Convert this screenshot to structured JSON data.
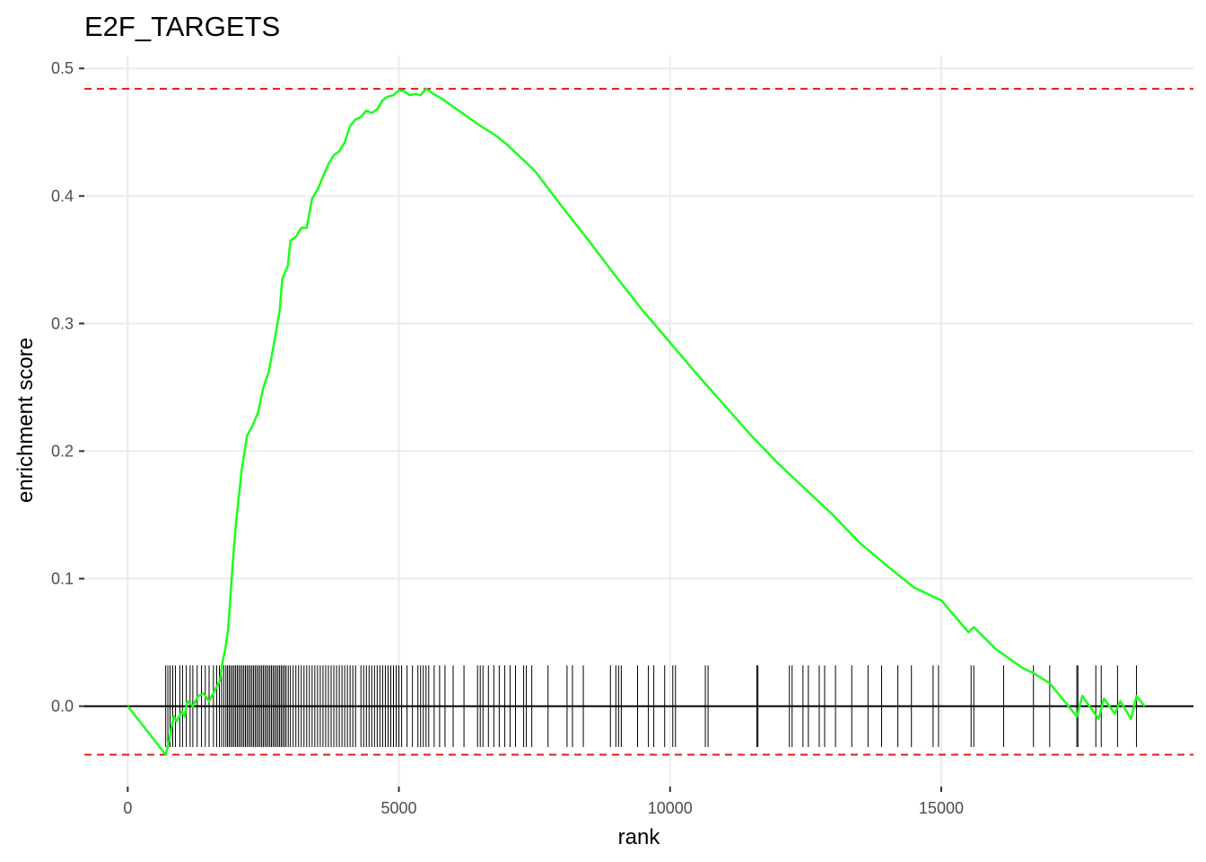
{
  "chart_data": {
    "type": "line",
    "title": "E2F_TARGETS",
    "xlabel": "rank",
    "ylabel": "enrichment score",
    "xlim": [
      -800,
      19650
    ],
    "ylim": [
      -0.063,
      0.51
    ],
    "x_ticks": [
      0,
      5000,
      10000,
      15000
    ],
    "x_tick_labels": [
      "0",
      "5000",
      "10000",
      "15000"
    ],
    "y_ticks": [
      0.0,
      0.1,
      0.2,
      0.3,
      0.4,
      0.5
    ],
    "y_tick_labels": [
      "0.0",
      "0.1",
      "0.2",
      "0.3",
      "0.4",
      "0.5"
    ],
    "grid": true,
    "colors": {
      "curve": "#1aff1a",
      "threshold": "#e31a1c",
      "baseline": "#000000",
      "grid": "#ebebeb",
      "ticks": "#000000"
    },
    "thresholds": {
      "upper": 0.484,
      "lower": -0.038
    },
    "series": [
      {
        "values": [
          [
            0,
            0.0
          ],
          [
            700,
            -0.038
          ],
          [
            760,
            -0.028
          ],
          [
            800,
            -0.018
          ],
          [
            850,
            -0.008
          ],
          [
            900,
            -0.012
          ],
          [
            1000,
            -0.004
          ],
          [
            1050,
            -0.008
          ],
          [
            1100,
            0.004
          ],
          [
            1200,
            0.0
          ],
          [
            1300,
            0.008
          ],
          [
            1400,
            0.01
          ],
          [
            1500,
            0.004
          ],
          [
            1600,
            0.012
          ],
          [
            1700,
            0.02
          ],
          [
            1750,
            0.035
          ],
          [
            1800,
            0.045
          ],
          [
            1850,
            0.06
          ],
          [
            1900,
            0.09
          ],
          [
            1950,
            0.12
          ],
          [
            2000,
            0.145
          ],
          [
            2100,
            0.185
          ],
          [
            2200,
            0.212
          ],
          [
            2300,
            0.22
          ],
          [
            2400,
            0.23
          ],
          [
            2500,
            0.25
          ],
          [
            2600,
            0.262
          ],
          [
            2700,
            0.285
          ],
          [
            2800,
            0.31
          ],
          [
            2850,
            0.335
          ],
          [
            2950,
            0.345
          ],
          [
            3000,
            0.365
          ],
          [
            3100,
            0.368
          ],
          [
            3200,
            0.375
          ],
          [
            3300,
            0.375
          ],
          [
            3400,
            0.398
          ],
          [
            3500,
            0.405
          ],
          [
            3600,
            0.415
          ],
          [
            3700,
            0.425
          ],
          [
            3800,
            0.432
          ],
          [
            3900,
            0.435
          ],
          [
            4000,
            0.442
          ],
          [
            4100,
            0.455
          ],
          [
            4200,
            0.46
          ],
          [
            4300,
            0.462
          ],
          [
            4400,
            0.467
          ],
          [
            4500,
            0.465
          ],
          [
            4600,
            0.468
          ],
          [
            4700,
            0.475
          ],
          [
            4800,
            0.478
          ],
          [
            4900,
            0.479
          ],
          [
            5000,
            0.483
          ],
          [
            5100,
            0.482
          ],
          [
            5200,
            0.479
          ],
          [
            5300,
            0.48
          ],
          [
            5400,
            0.479
          ],
          [
            5500,
            0.484
          ],
          [
            5600,
            0.481
          ],
          [
            5800,
            0.476
          ],
          [
            6000,
            0.47
          ],
          [
            6200,
            0.464
          ],
          [
            6500,
            0.455
          ],
          [
            6800,
            0.447
          ],
          [
            7000,
            0.44
          ],
          [
            7500,
            0.42
          ],
          [
            8000,
            0.392
          ],
          [
            8500,
            0.365
          ],
          [
            9000,
            0.337
          ],
          [
            9500,
            0.31
          ],
          [
            10000,
            0.285
          ],
          [
            10500,
            0.26
          ],
          [
            11000,
            0.236
          ],
          [
            11500,
            0.212
          ],
          [
            12000,
            0.19
          ],
          [
            12500,
            0.17
          ],
          [
            13000,
            0.15
          ],
          [
            13500,
            0.128
          ],
          [
            14000,
            0.11
          ],
          [
            14500,
            0.093
          ],
          [
            15000,
            0.083
          ],
          [
            15500,
            0.058
          ],
          [
            15600,
            0.062
          ],
          [
            16000,
            0.045
          ],
          [
            16500,
            0.03
          ],
          [
            16700,
            0.026
          ],
          [
            17000,
            0.018
          ],
          [
            17500,
            -0.008
          ],
          [
            17600,
            0.008
          ],
          [
            17900,
            -0.01
          ],
          [
            18000,
            0.006
          ],
          [
            18200,
            -0.006
          ],
          [
            18300,
            0.004
          ],
          [
            18500,
            -0.01
          ],
          [
            18600,
            0.008
          ],
          [
            18750,
            0.0
          ]
        ]
      }
    ],
    "hits": [
      700,
      740,
      780,
      830,
      880,
      960,
      1010,
      1080,
      1150,
      1200,
      1280,
      1360,
      1430,
      1500,
      1580,
      1640,
      1690,
      1730,
      1770,
      1810,
      1840,
      1870,
      1900,
      1930,
      1960,
      1990,
      2020,
      2050,
      2080,
      2110,
      2140,
      2170,
      2200,
      2230,
      2260,
      2290,
      2320,
      2350,
      2380,
      2410,
      2440,
      2470,
      2500,
      2530,
      2560,
      2590,
      2620,
      2650,
      2680,
      2710,
      2740,
      2770,
      2800,
      2830,
      2860,
      2890,
      2920,
      2960,
      3000,
      3050,
      3100,
      3150,
      3200,
      3250,
      3300,
      3350,
      3400,
      3450,
      3500,
      3550,
      3600,
      3650,
      3700,
      3750,
      3800,
      3850,
      3900,
      3950,
      4000,
      4050,
      4100,
      4150,
      4200,
      4300,
      4350,
      4400,
      4450,
      4500,
      4550,
      4600,
      4650,
      4700,
      4750,
      4800,
      4850,
      4900,
      4950,
      5000,
      5050,
      5150,
      5250,
      5350,
      5400,
      5450,
      5500,
      5550,
      5650,
      5750,
      5850,
      6000,
      6200,
      6450,
      6500,
      6550,
      6650,
      6750,
      6850,
      6950,
      7050,
      7150,
      7300,
      7350,
      7450,
      7750,
      8100,
      8200,
      8400,
      8900,
      9000,
      9050,
      9100,
      9400,
      9600,
      9700,
      9900,
      10050,
      10100,
      10650,
      10700,
      11600,
      11620,
      12200,
      12250,
      12450,
      12550,
      12750,
      12850,
      13050,
      13350,
      13650,
      13900,
      14200,
      14450,
      14850,
      14950,
      15550,
      15600,
      16150,
      16700,
      17000,
      17500,
      17520,
      17850,
      17950,
      18250,
      18600
    ],
    "hit_band": [
      -0.032,
      0.032
    ]
  }
}
